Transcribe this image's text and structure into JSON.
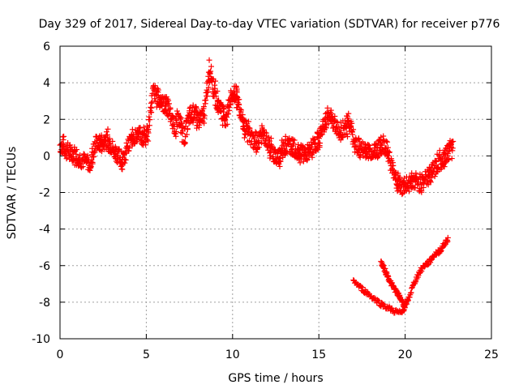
{
  "chart_data": {
    "type": "scatter",
    "title": "Day 329 of 2017, Sidereal Day-to-day VTEC variation (SDTVAR) for receiver p776",
    "xlabel": "GPS time / hours",
    "ylabel": "SDTVAR / TECUs",
    "xlim": [
      0,
      25
    ],
    "ylim": [
      -10,
      6
    ],
    "xticks": [
      0,
      5,
      10,
      15,
      20,
      25
    ],
    "yticks": [
      -10,
      -8,
      -6,
      -4,
      -2,
      0,
      2,
      4,
      6
    ],
    "grid": true,
    "marker": "+",
    "color": "#ff0000",
    "series_trace": [
      {
        "name": "upper",
        "x": [
          0,
          0.3,
          0.6,
          0.9,
          1.2,
          1.5,
          1.8,
          2.1,
          2.4,
          2.7,
          3.0,
          3.3,
          3.6,
          3.9,
          4.2,
          4.5,
          4.8,
          5.1,
          5.4,
          5.7,
          6.0,
          6.3,
          6.6,
          6.9,
          7.2,
          7.5,
          7.8,
          8.1,
          8.4,
          8.7,
          9.0,
          9.3,
          9.6,
          9.9,
          10.2,
          10.5,
          10.8,
          11.1,
          11.4,
          11.7,
          12.0,
          12.3,
          12.6,
          12.9,
          13.2,
          13.5,
          13.8,
          14.1,
          14.4,
          14.7,
          15.0,
          15.3,
          15.6,
          15.9,
          16.2,
          16.5,
          16.8,
          17.1,
          17.4,
          17.7,
          18.0,
          18.3,
          18.6,
          18.9,
          19.2,
          19.5,
          19.8,
          20.1,
          20.4,
          20.7,
          21.0,
          21.3,
          21.6,
          21.9,
          22.2,
          22.5,
          22.8
        ],
        "y": [
          0.6,
          0.4,
          0.2,
          0.1,
          -0.2,
          -0.3,
          -0.4,
          0.8,
          0.6,
          0.9,
          0.5,
          0.1,
          -0.3,
          0.4,
          1.0,
          1.2,
          1.0,
          1.4,
          3.6,
          3.2,
          2.8,
          2.6,
          1.5,
          2.0,
          1.0,
          2.2,
          2.4,
          1.8,
          2.6,
          4.8,
          3.2,
          2.6,
          2.0,
          3.2,
          3.4,
          2.2,
          1.4,
          1.0,
          0.6,
          1.2,
          0.8,
          0.2,
          -0.2,
          0.4,
          0.6,
          0.5,
          0.2,
          0.3,
          0.1,
          0.6,
          0.8,
          1.6,
          2.2,
          1.8,
          1.2,
          1.5,
          1.8,
          0.6,
          0.4,
          0.3,
          0.2,
          0.3,
          0.5,
          0.6,
          -0.5,
          -1.2,
          -1.8,
          -1.6,
          -1.4,
          -1.6,
          -1.4,
          -1.2,
          -0.8,
          -0.4,
          -0.2,
          0.2,
          0.4
        ]
      },
      {
        "name": "lower",
        "x": [
          17.0,
          17.4,
          17.8,
          18.2,
          18.6,
          19.0,
          19.4,
          19.8,
          20.0,
          20.2,
          20.5,
          20.8,
          21.1,
          21.4,
          21.7,
          22.0,
          22.3,
          22.5
        ],
        "y": [
          -6.8,
          -7.2,
          -7.5,
          -7.8,
          -8.1,
          -8.3,
          -8.5,
          -8.6,
          -8.2,
          -7.8,
          -7.0,
          -6.4,
          -6.0,
          -5.8,
          -5.4,
          -5.2,
          -4.8,
          -4.5
        ]
      },
      {
        "name": "lower-branch",
        "x": [
          18.6,
          18.8,
          19.0,
          19.2,
          19.4,
          19.6,
          19.8,
          20.0
        ],
        "y": [
          -5.8,
          -6.2,
          -6.6,
          -7.0,
          -7.3,
          -7.6,
          -7.9,
          -8.3
        ]
      }
    ]
  }
}
